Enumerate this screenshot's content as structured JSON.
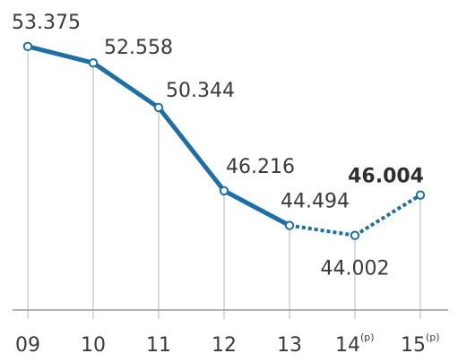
{
  "chart_data": {
    "type": "line",
    "title": "",
    "xlabel": "",
    "ylabel": "",
    "categories": [
      "09",
      "10",
      "11",
      "12",
      "13",
      "14",
      "15"
    ],
    "category_suffix": [
      "",
      "",
      "",
      "",
      "",
      "(p)",
      "(p)"
    ],
    "values": [
      53.375,
      52.558,
      50.344,
      46.216,
      44.494,
      44.002,
      46.004
    ],
    "value_labels": [
      "53.375",
      "52.558",
      "50.344",
      "46.216",
      "44.494",
      "44.002",
      "46.004"
    ],
    "projected_from_index": 4,
    "highlight_index": 6,
    "ylim": [
      40.3,
      53.9
    ],
    "grid": "vertical drop lines at each point",
    "line_color": "#1d6fa5",
    "marker_fill": "#ffffff",
    "axis_color": "#9a9a9a"
  }
}
